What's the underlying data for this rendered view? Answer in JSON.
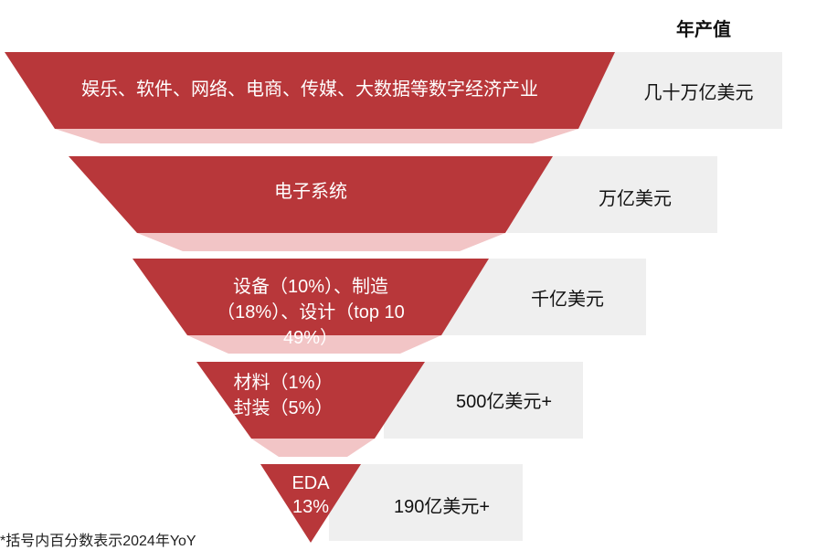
{
  "header": {
    "title": "年产值"
  },
  "layers": [
    {
      "label_lines": [
        "娱乐、软件、网络、电商、传媒、大数据等数字经济产业"
      ],
      "value": "几十万亿美元"
    },
    {
      "label_lines": [
        "电子系统"
      ],
      "value": "万亿美元"
    },
    {
      "label_lines": [
        "设备（10%）、制造",
        "（18%）、设计（top 10",
        "49%）"
      ],
      "value": "千亿美元"
    },
    {
      "label_lines": [
        "材料（1%）",
        "封装（5%）"
      ],
      "value": "500亿美元+"
    },
    {
      "label_lines": [
        "EDA",
        "13%"
      ],
      "value": "190亿美元+"
    }
  ],
  "footnote": "*括号内百分数表示2024年YoY",
  "colors": {
    "funnel": "#b8373a",
    "funnel_shadow": "#f2c5c6",
    "value_box": "#efefef"
  }
}
